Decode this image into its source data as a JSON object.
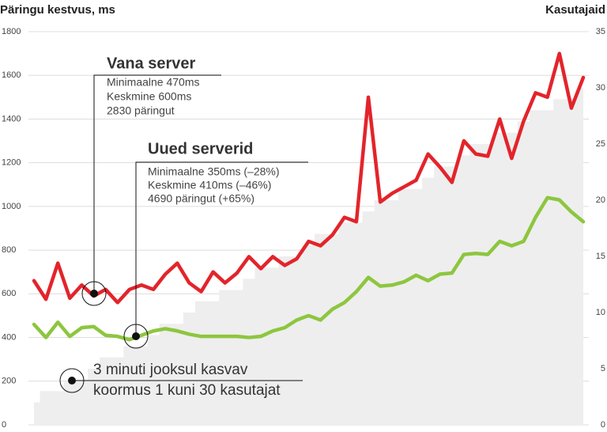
{
  "chart_data": {
    "type": "line",
    "y_label": "Päringu kestvus, ms",
    "y2_label": "Kasutajaid",
    "categories": [
      null,
      null,
      null,
      null,
      null,
      null,
      null,
      null,
      null,
      null,
      null,
      null,
      null,
      null,
      null,
      null,
      null,
      null,
      null,
      null,
      null,
      null,
      null,
      null,
      null,
      null,
      null,
      null,
      null,
      null,
      null,
      null,
      null,
      null,
      null,
      null,
      null,
      null,
      null,
      null,
      null,
      null,
      null,
      null,
      null,
      null,
      null
    ],
    "ylim": [
      0,
      1800
    ],
    "yticks": [
      0,
      200,
      400,
      600,
      800,
      1000,
      1200,
      1400,
      1600,
      1800
    ],
    "y2lim": [
      0,
      35
    ],
    "y2ticks": [
      0,
      5,
      10,
      15,
      20,
      25,
      30,
      35
    ],
    "grid": true,
    "series": [
      {
        "name": "Kasutajaid",
        "kind": "area",
        "axis": "y2",
        "color": "#eeeeee",
        "values": [
          2,
          3,
          3,
          4,
          4,
          5,
          6,
          6,
          7,
          7,
          8,
          9,
          9,
          10,
          11,
          11,
          12,
          12,
          13,
          14,
          14,
          15,
          15,
          16,
          17,
          17,
          18,
          18,
          19,
          20,
          20,
          21,
          21,
          22,
          23,
          23,
          24,
          25,
          25,
          26,
          26,
          27,
          28,
          28,
          29,
          29,
          30
        ]
      },
      {
        "name": "Vana server",
        "color": "#e3242b",
        "values": [
          660,
          575,
          740,
          580,
          640,
          590,
          620,
          560,
          620,
          640,
          620,
          690,
          740,
          650,
          610,
          700,
          650,
          695,
          770,
          715,
          770,
          730,
          760,
          840,
          820,
          870,
          950,
          930,
          1500,
          1020,
          1060,
          1090,
          1120,
          1240,
          1180,
          1110,
          1300,
          1240,
          1230,
          1400,
          1220,
          1390,
          1520,
          1500,
          1700,
          1450,
          1590
        ]
      },
      {
        "name": "Uued serverid",
        "color": "#8dc63f",
        "values": [
          460,
          400,
          470,
          405,
          445,
          450,
          410,
          405,
          390,
          410,
          430,
          440,
          430,
          415,
          405,
          405,
          405,
          405,
          400,
          405,
          430,
          445,
          480,
          500,
          480,
          530,
          560,
          610,
          675,
          635,
          640,
          655,
          685,
          660,
          690,
          695,
          780,
          785,
          780,
          840,
          820,
          840,
          950,
          1040,
          1030,
          975,
          930
        ]
      }
    ],
    "annotations": {
      "old_server": [
        "Minimaalne 470ms",
        "Keskmine 600ms",
        "2830 päringut"
      ],
      "new_servers": [
        "Minimaalne 350ms (–28%)",
        "Keskmine 410ms (–46%)",
        "4690 päringut (+65%)"
      ],
      "load": [
        "3 minuti jooksul kasvav",
        "koormus 1 kuni 30 kasutajat"
      ]
    }
  }
}
